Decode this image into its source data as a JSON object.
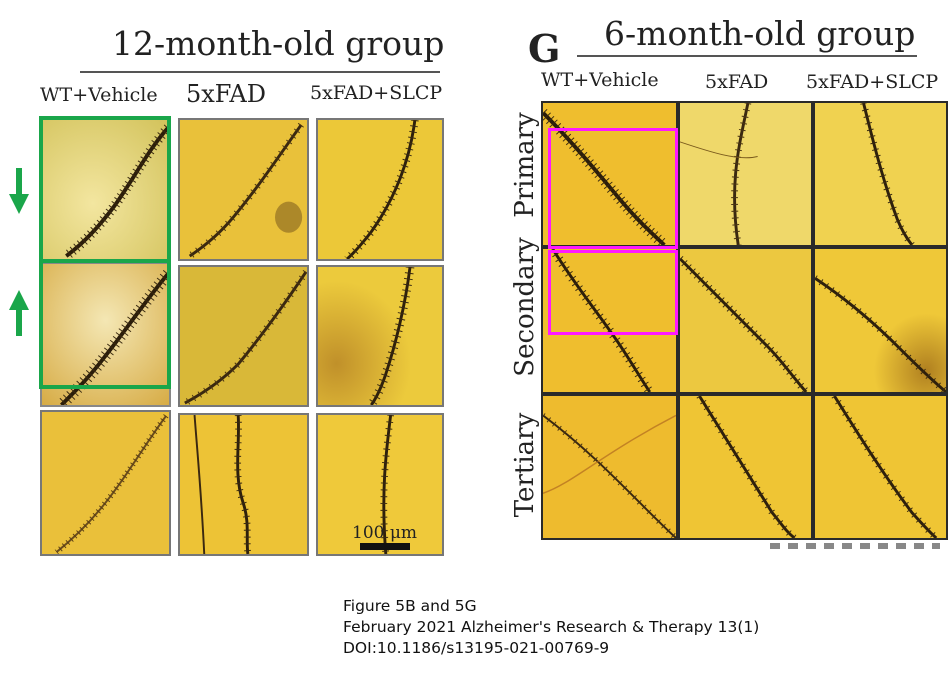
{
  "figure_b": {
    "title": "12-month-old group",
    "columns": [
      "WT+Vehicle",
      "5xFAD",
      "5xFAD+SLCP"
    ],
    "scale_bar": "100 μm",
    "arrows": [
      "arrow-down",
      "arrow-up"
    ]
  },
  "figure_g": {
    "panel_letter": "G",
    "title": "6-month-old group",
    "columns": [
      "WT+Vehicle",
      "5xFAD",
      "5xFAD+SLCP"
    ],
    "rows": [
      "Primary",
      "Secondary",
      "Tertiary"
    ]
  },
  "caption": {
    "line1": "Figure 5B and 5G",
    "line2": "February 2021 Alzheimer's Research & Therapy 13(1)",
    "line3": "DOI:10.1186/s13195-021-00769-9"
  },
  "colors": {
    "highlight_green": "#1aa64a",
    "highlight_pink": "#ff18ff",
    "micrograph_bg": "#e9bd2a"
  }
}
